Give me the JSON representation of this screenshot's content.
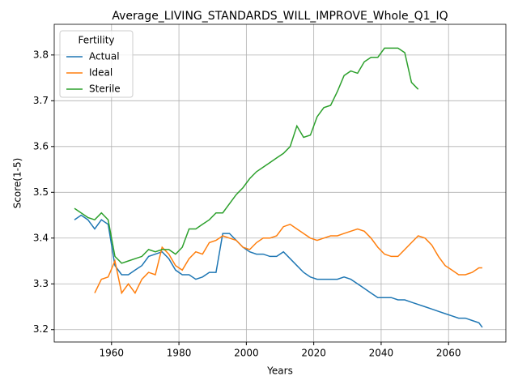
{
  "chart_data": {
    "type": "line",
    "title": "Average_LIVING_STANDARDS_WILL_IMPROVE_Whole_Q1_IQ",
    "x_label": "Years",
    "y_label": "Score(1-5)",
    "legend_title": "Fertility",
    "legend": "upper left",
    "grid": true,
    "xlim": [
      1943,
      2077
    ],
    "ylim": [
      3.173,
      3.867
    ],
    "xticks": [
      1960,
      1980,
      2000,
      2020,
      2040,
      2060
    ],
    "yticks": [
      3.2,
      3.3,
      3.4,
      3.5,
      3.6,
      3.7,
      3.8
    ],
    "x": [
      1949,
      1951,
      1953,
      1955,
      1957,
      1959,
      1961,
      1963,
      1965,
      1967,
      1969,
      1971,
      1973,
      1975,
      1977,
      1979,
      1981,
      1983,
      1985,
      1987,
      1989,
      1991,
      1993,
      1995,
      1997,
      1999,
      2001,
      2003,
      2005,
      2007,
      2009,
      2011,
      2013,
      2015,
      2017,
      2019,
      2021,
      2023,
      2025,
      2027,
      2029,
      2031,
      2033,
      2035,
      2037,
      2039,
      2041,
      2043,
      2045,
      2047,
      2049,
      2051,
      2053,
      2055,
      2057,
      2059,
      2061,
      2063,
      2065,
      2067,
      2069,
      2070
    ],
    "series": [
      {
        "name": "Actual",
        "color": "#1f77b4",
        "values": [
          3.44,
          3.45,
          3.44,
          3.42,
          3.44,
          3.43,
          3.34,
          3.32,
          3.32,
          3.33,
          3.34,
          3.36,
          3.365,
          3.37,
          3.355,
          3.33,
          3.32,
          3.32,
          3.31,
          3.315,
          3.325,
          3.325,
          3.41,
          3.41,
          3.395,
          3.38,
          3.37,
          3.365,
          3.365,
          3.36,
          3.36,
          3.37,
          3.355,
          3.34,
          3.325,
          3.315,
          3.31,
          3.31,
          3.31,
          3.31,
          3.315,
          3.31,
          3.3,
          3.29,
          3.28,
          3.27,
          3.27,
          3.27,
          3.265,
          3.265,
          3.26,
          3.255,
          3.25,
          3.245,
          3.24,
          3.235,
          3.23,
          3.225,
          3.225,
          3.22,
          3.215,
          3.205
        ]
      },
      {
        "name": "Ideal",
        "color": "#ff7f0e",
        "values": [
          null,
          null,
          null,
          3.28,
          3.31,
          3.315,
          3.35,
          3.28,
          3.3,
          3.28,
          3.31,
          3.325,
          3.32,
          3.38,
          3.365,
          3.34,
          3.33,
          3.355,
          3.37,
          3.365,
          3.39,
          3.395,
          3.405,
          3.4,
          3.395,
          3.38,
          3.375,
          3.39,
          3.4,
          3.4,
          3.405,
          3.425,
          3.43,
          3.42,
          3.41,
          3.4,
          3.395,
          3.4,
          3.405,
          3.405,
          3.41,
          3.415,
          3.42,
          3.415,
          3.4,
          3.38,
          3.365,
          3.36,
          3.36,
          3.375,
          3.39,
          3.405,
          3.4,
          3.385,
          3.36,
          3.34,
          3.33,
          3.32,
          3.32,
          3.325,
          3.335,
          3.335
        ]
      },
      {
        "name": "Sterile",
        "color": "#2ca02c",
        "values": [
          3.465,
          3.455,
          3.445,
          3.44,
          3.455,
          3.44,
          3.36,
          3.345,
          3.35,
          3.355,
          3.36,
          3.375,
          3.37,
          3.375,
          3.375,
          3.365,
          3.38,
          3.42,
          3.42,
          3.43,
          3.44,
          3.455,
          3.455,
          3.475,
          3.495,
          3.51,
          3.53,
          3.545,
          3.555,
          3.565,
          3.575,
          3.585,
          3.6,
          3.645,
          3.62,
          3.625,
          3.665,
          3.685,
          3.69,
          3.72,
          3.755,
          3.765,
          3.76,
          3.785,
          3.795,
          3.795,
          3.815,
          3.815,
          3.815,
          3.805,
          3.74,
          3.725,
          null,
          null,
          null,
          null,
          null,
          null,
          null,
          null,
          null,
          null
        ]
      }
    ]
  }
}
